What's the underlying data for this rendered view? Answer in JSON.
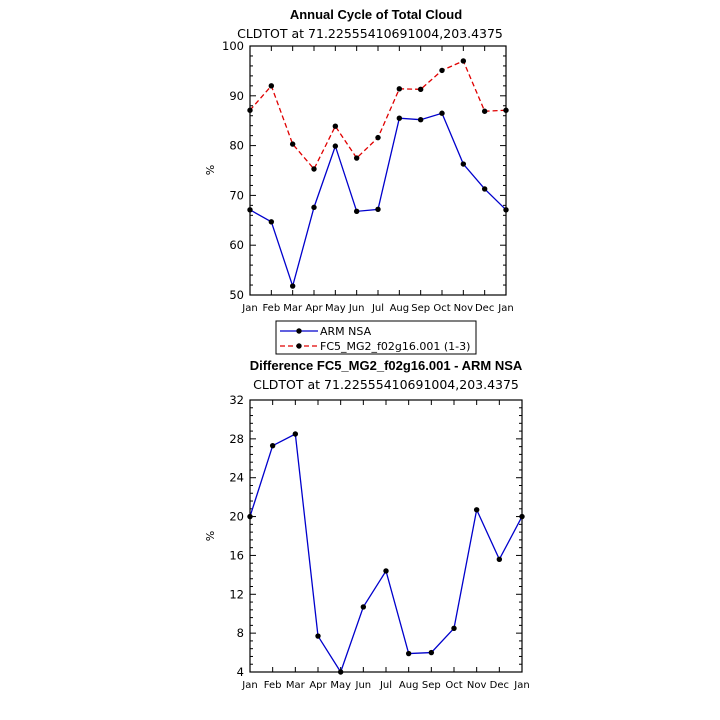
{
  "chart_data": [
    {
      "type": "line",
      "title": "Annual Cycle of Total Cloud",
      "subtitle": "CLDTOT at 71.22555410691004,203.4375",
      "xlabel": "",
      "ylabel": "%",
      "categories": [
        "Jan",
        "Feb",
        "Mar",
        "Apr",
        "May",
        "Jun",
        "Jul",
        "Aug",
        "Sep",
        "Oct",
        "Nov",
        "Dec",
        "Jan"
      ],
      "ylim": [
        50,
        100
      ],
      "yticks": [
        50,
        60,
        70,
        80,
        90,
        100
      ],
      "series": [
        {
          "name": "ARM NSA",
          "color": "#0000cc",
          "style": "solid",
          "values": [
            67.1,
            64.7,
            51.8,
            67.6,
            79.9,
            66.8,
            67.2,
            85.5,
            85.2,
            86.5,
            76.3,
            71.3,
            67.1
          ]
        },
        {
          "name": "FC5_MG2_f02g16.001 (1-3)",
          "color": "#e00000",
          "style": "dashed",
          "values": [
            87.1,
            92.0,
            80.3,
            75.3,
            83.9,
            77.5,
            81.6,
            91.4,
            91.3,
            95.1,
            97.0,
            86.9,
            87.1
          ]
        }
      ],
      "legend": "below"
    },
    {
      "type": "line",
      "title": "Difference FC5_MG2_f02g16.001 - ARM NSA",
      "subtitle": "CLDTOT at 71.22555410691004,203.4375",
      "xlabel": "",
      "ylabel": "%",
      "categories": [
        "Jan",
        "Feb",
        "Mar",
        "Apr",
        "May",
        "Jun",
        "Jul",
        "Aug",
        "Sep",
        "Oct",
        "Nov",
        "Dec",
        "Jan"
      ],
      "ylim": [
        4,
        32
      ],
      "yticks": [
        4,
        8,
        12,
        16,
        20,
        24,
        28,
        32
      ],
      "series": [
        {
          "color": "#0000cc",
          "style": "solid",
          "values": [
            20.0,
            27.3,
            28.5,
            7.7,
            4.0,
            10.7,
            14.4,
            5.9,
            6.0,
            8.5,
            20.7,
            15.6,
            20.0
          ]
        }
      ]
    }
  ]
}
